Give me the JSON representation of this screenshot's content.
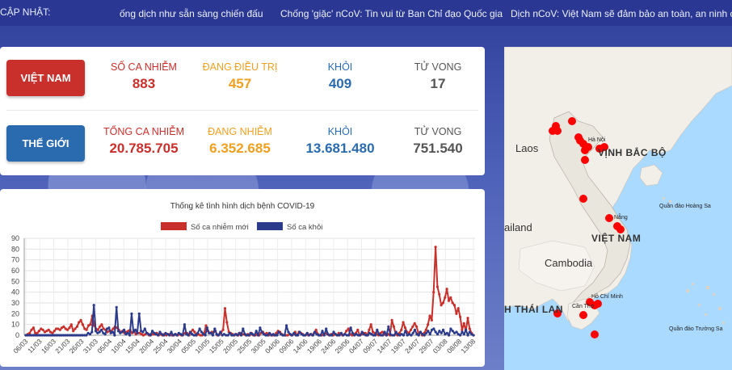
{
  "ticker": {
    "label": "CẬP NHẬT:",
    "items": [
      "ống dịch như sẵn sàng chiến đấu",
      "Chống 'giặc' nCoV: Tin vui từ Ban Chỉ đạo Quốc gia",
      "Dịch nCoV: Việt Nam sẽ đảm bảo an toàn, an ninh cho cá"
    ]
  },
  "vietnam": {
    "badge": "VIỆT NAM",
    "cases_label": "SỐ CA NHIỄM",
    "cases": "883",
    "treating_label": "ĐANG ĐIỀU TRỊ",
    "treating": "457",
    "recovered_label": "KHỎI",
    "recovered": "409",
    "deaths_label": "TỬ VONG",
    "deaths": "17"
  },
  "world": {
    "badge": "THẾ GIỚI",
    "cases_label": "TỔNG CA NHIỄM",
    "cases": "20.785.705",
    "active_label": "ĐANG NHIỄM",
    "active": "6.352.685",
    "recovered_label": "KHỎI",
    "recovered": "13.681.480",
    "deaths_label": "TỬ VONG",
    "deaths": "751.540"
  },
  "map": {
    "labels": {
      "laos": "Laos",
      "gulf": "VỊNH BẮC BỘ",
      "thailand": "ailand",
      "vietnam": "VIỆT NAM",
      "cambodia": "Cambodia",
      "hoang_sa": "Quần đảo Hoàng Sa",
      "truong_sa": "Quần đảo Trường Sa",
      "gulf_thailand": "H THÁI LAN",
      "da_nang": "Nẵng",
      "hcm": "Hồ Chí Minh",
      "can_tho": "Cần Thơ",
      "hanoi": "Hà Nội"
    },
    "marker_color": "#ff0000"
  },
  "chart_data": {
    "type": "line",
    "title": "Thống kê tình hình dịch bệnh COVID-19",
    "xlabel": "",
    "ylabel": "",
    "ylim": [
      0,
      90
    ],
    "yticks": [
      0,
      10,
      20,
      30,
      40,
      50,
      60,
      70,
      80,
      90
    ],
    "grid": true,
    "legend": "top-center",
    "x_tick_labels": [
      "06/03",
      "11/03",
      "16/03",
      "21/03",
      "26/03",
      "31/03",
      "05/04",
      "10/04",
      "15/04",
      "20/04",
      "25/04",
      "30/04",
      "05/05",
      "10/05",
      "15/05",
      "20/05",
      "25/05",
      "30/05",
      "04/06",
      "09/06",
      "14/06",
      "19/06",
      "24/06",
      "29/06",
      "04/07",
      "09/07",
      "14/07",
      "19/07",
      "24/07",
      "29/07",
      "03/08",
      "08/08",
      "13/08"
    ],
    "series": [
      {
        "name": "Số ca nhiễm mới",
        "color": "#c9302c",
        "values": [
          0,
          1,
          2,
          5,
          7,
          2,
          2,
          4,
          6,
          5,
          3,
          4,
          5,
          3,
          2,
          4,
          6,
          6,
          5,
          7,
          8,
          6,
          5,
          7,
          10,
          4,
          6,
          8,
          12,
          14,
          10,
          6,
          5,
          9,
          10,
          18,
          9,
          6,
          5,
          8,
          10,
          6,
          5,
          3,
          4,
          4,
          6,
          8,
          7,
          5,
          3,
          4,
          2,
          3,
          4,
          5,
          2,
          4,
          1,
          2,
          2,
          1,
          0,
          1,
          2,
          0,
          1,
          1,
          1,
          2,
          0,
          1,
          0,
          1,
          0,
          1,
          1,
          0,
          0,
          1,
          0,
          1,
          0,
          1,
          2,
          2,
          0,
          3,
          5,
          3,
          0,
          1,
          0,
          0,
          2,
          9,
          4,
          2,
          3,
          3,
          4,
          0,
          1,
          3,
          5,
          25,
          12,
          3,
          2,
          1,
          0,
          1,
          0,
          2,
          1,
          1,
          0,
          1,
          0,
          2,
          0,
          0,
          1,
          0,
          2,
          3,
          1,
          2,
          0,
          1,
          0,
          0,
          2,
          4,
          3,
          1,
          0,
          0,
          0,
          1,
          0,
          1,
          3,
          0,
          3,
          2,
          1,
          0,
          1,
          0,
          1,
          0,
          2,
          5,
          1,
          0,
          0,
          1,
          2,
          1,
          0,
          1,
          0,
          1,
          0,
          2,
          1,
          0,
          1,
          4,
          6,
          1,
          0,
          1,
          2,
          5,
          0,
          1,
          2,
          2,
          0,
          5,
          10,
          3,
          2,
          1,
          0,
          2,
          3,
          1,
          0,
          1,
          0,
          14,
          8,
          1,
          0,
          2,
          5,
          12,
          7,
          3,
          2,
          5,
          8,
          11,
          8,
          2,
          3,
          0,
          2,
          5,
          10,
          18,
          14,
          40,
          82,
          45,
          38,
          28,
          30,
          35,
          43,
          32,
          35,
          30,
          28,
          20,
          25,
          17,
          5,
          11,
          4,
          16,
          6,
          2,
          0
        ]
      },
      {
        "name": "Số ca khỏi",
        "color": "#2b3a8a",
        "values": [
          0,
          0,
          0,
          0,
          0,
          0,
          0,
          0,
          0,
          0,
          0,
          0,
          0,
          0,
          0,
          0,
          0,
          0,
          0,
          0,
          0,
          0,
          0,
          0,
          0,
          0,
          0,
          0,
          0,
          0,
          0,
          0,
          0,
          2,
          1,
          3,
          28,
          4,
          2,
          3,
          5,
          2,
          1,
          6,
          7,
          2,
          3,
          0,
          26,
          4,
          2,
          3,
          5,
          1,
          2,
          0,
          20,
          3,
          5,
          2,
          20,
          4,
          3,
          6,
          2,
          1,
          0,
          4,
          2,
          1,
          0,
          3,
          1,
          0,
          2,
          1,
          0,
          3,
          0,
          1,
          0,
          2,
          1,
          0,
          10,
          1,
          0,
          3,
          1,
          0,
          0,
          2,
          6,
          3,
          1,
          0,
          7,
          2,
          2,
          0,
          6,
          1,
          0,
          3,
          0,
          1,
          0,
          0,
          2,
          0,
          0,
          1,
          0,
          2,
          0,
          6,
          1,
          0,
          0,
          2,
          1,
          0,
          4,
          0,
          7,
          3,
          1,
          0,
          0,
          2,
          0,
          1,
          0,
          0,
          3,
          1,
          0,
          0,
          9,
          3,
          1,
          0,
          2,
          0,
          0,
          3,
          1,
          0,
          0,
          2,
          0,
          1,
          0,
          3,
          1,
          0,
          0,
          4,
          0,
          6,
          1,
          0,
          0,
          3,
          1,
          0,
          0,
          2,
          0,
          1,
          0,
          0,
          7,
          2,
          0,
          1,
          0,
          0,
          3,
          1,
          0,
          0,
          2,
          1,
          0,
          0,
          5,
          1,
          0,
          0,
          3,
          0,
          8,
          1,
          0,
          0,
          3,
          1,
          0,
          1,
          0,
          4,
          0,
          1,
          0,
          2,
          5,
          1,
          0,
          3,
          1,
          0,
          2,
          4,
          1,
          5,
          6,
          3,
          1,
          4,
          2,
          5,
          1,
          2,
          0,
          6,
          4,
          2,
          3,
          1,
          0,
          3,
          1,
          5,
          0,
          3,
          1,
          0
        ]
      }
    ]
  }
}
